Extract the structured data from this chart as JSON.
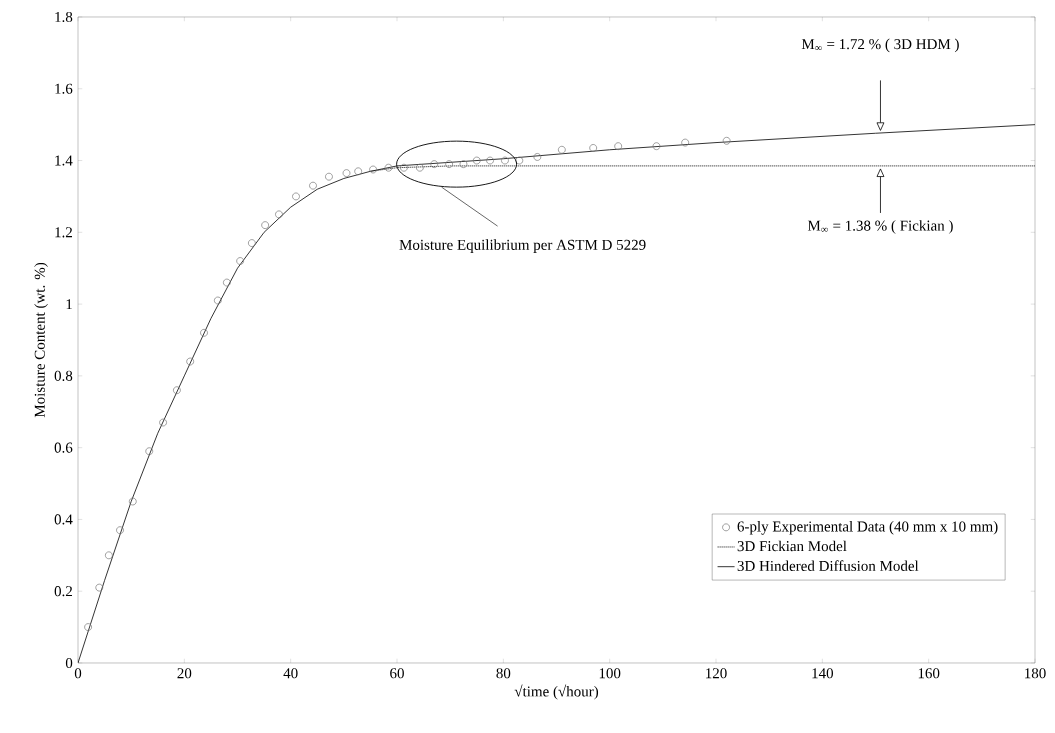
{
  "chart_data": {
    "type": "line",
    "xlabel": "√time  (√hour)",
    "ylabel": "Moisture Content (wt. %)",
    "xlim": [
      0,
      180
    ],
    "ylim": [
      0,
      1.8
    ],
    "xticks": [
      0,
      20,
      40,
      60,
      80,
      100,
      120,
      140,
      160,
      180
    ],
    "yticks": [
      0,
      0.2,
      0.4,
      0.6,
      0.8,
      1,
      1.2,
      1.4,
      1.6,
      1.8
    ],
    "legend": "bottom right",
    "series": [
      {
        "name": "6-ply Experimental Data (40 mm x 10 mm)",
        "type": "scatter",
        "marker": "circle",
        "color": "#777777",
        "x": [
          1.9,
          4.0,
          5.8,
          7.9,
          10.3,
          13.4,
          16.0,
          18.6,
          21.1,
          23.7,
          26.3,
          28.0,
          30.5,
          32.7,
          35.2,
          37.8,
          41.0,
          44.2,
          47.2,
          50.5,
          52.7,
          55.5,
          58.4,
          61.3,
          64.3,
          67.0,
          69.8,
          72.5,
          75.0,
          77.5,
          80.3,
          83.0,
          86.4,
          91.0,
          96.9,
          101.6,
          108.8,
          114.2,
          122.0
        ],
        "values": [
          0.1,
          0.21,
          0.3,
          0.37,
          0.45,
          0.59,
          0.67,
          0.76,
          0.84,
          0.92,
          1.01,
          1.06,
          1.12,
          1.17,
          1.22,
          1.25,
          1.3,
          1.33,
          1.355,
          1.365,
          1.37,
          1.375,
          1.38,
          1.38,
          1.38,
          1.39,
          1.39,
          1.39,
          1.4,
          1.4,
          1.4,
          1.4,
          1.41,
          1.43,
          1.435,
          1.44,
          1.44,
          1.45,
          1.455
        ]
      },
      {
        "name": "3D Fickian Model",
        "line_style": "dotted",
        "color": "#000000",
        "x": [
          55,
          60,
          70,
          180
        ],
        "values": [
          1.37,
          1.38,
          1.385,
          1.385
        ]
      },
      {
        "name": "3D Hindered Diffusion Model",
        "line_style": "solid",
        "color": "#000000",
        "x": [
          0,
          5,
          10,
          15,
          20,
          25,
          30,
          35,
          40,
          45,
          50,
          55,
          60,
          70,
          80,
          100,
          120,
          150,
          180
        ],
        "values": [
          0,
          0.23,
          0.45,
          0.64,
          0.8,
          0.96,
          1.1,
          1.2,
          1.27,
          1.32,
          1.35,
          1.37,
          1.385,
          1.395,
          1.405,
          1.43,
          1.45,
          1.476,
          1.5
        ]
      }
    ],
    "annotations": [
      "M$_{∞}$ = 1.72 %  ( 3D HDM )",
      "M$_{∞}$ = 1.38 %   ( Fickian )",
      "Moisture Equilibrium per ASTM D 5229"
    ]
  }
}
